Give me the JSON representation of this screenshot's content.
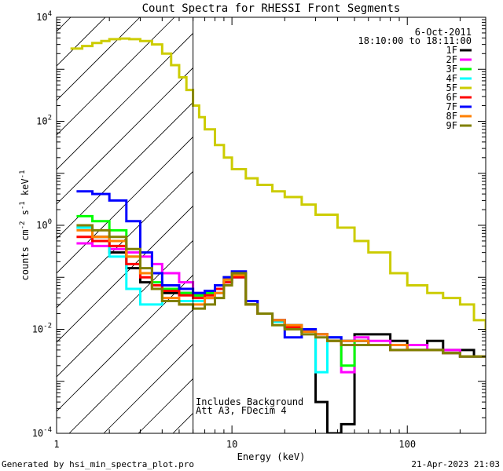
{
  "chart_data": {
    "type": "line",
    "title": "Count Spectra for RHESSI Front Segments",
    "xlabel": "Energy (keV)",
    "ylabel": "counts cm-2 s-1 keV-1",
    "ylabel_parts": {
      "base": "counts cm",
      "e1": "-2",
      "mid1": " s",
      "e2": "-1",
      "mid2": " keV",
      "e3": "-1"
    },
    "xscale": "log",
    "yscale": "log",
    "xlim": [
      1,
      280
    ],
    "ylim": [
      0.0001,
      10000
    ],
    "x_ticks": [
      {
        "value": 1,
        "label": "1"
      },
      {
        "value": 10,
        "label": "10"
      },
      {
        "value": 100,
        "label": "100"
      }
    ],
    "y_ticks": [
      {
        "value": 0.0001,
        "base": "10",
        "exp": "-4"
      },
      {
        "value": 0.01,
        "base": "10",
        "exp": "-2"
      },
      {
        "value": 1,
        "base": "10",
        "exp": "0"
      },
      {
        "value": 100,
        "base": "10",
        "exp": "2"
      },
      {
        "value": 10000,
        "base": "10",
        "exp": "4"
      }
    ],
    "legend_position": "top-right",
    "date": "6-Oct-2011",
    "time_range": "18:10:00 to 18:11:00",
    "hatched_region_x": [
      1,
      6
    ],
    "vertical_line_x": 6,
    "annotation_lines": [
      "Includes Background",
      "Att A3, FDecim 4"
    ],
    "footer_left": "Generated by hsi_min_spectra_plot.pro",
    "footer_right": "21-Apr-2023 21:03",
    "series": [
      {
        "name": "1F",
        "color": "#000000",
        "x": [
          1.3,
          1.6,
          2.0,
          2.5,
          3.0,
          3.5,
          4.0,
          5.0,
          6.0,
          7.0,
          8.0,
          9.0,
          10.0,
          12.0,
          14.0,
          17.0,
          20.0,
          25.0,
          30.0,
          35.0,
          42.0,
          50.0,
          60.0,
          80.0,
          100.0,
          130.0,
          160.0,
          200.0,
          240.0,
          280.0
        ],
        "y": [
          0.9,
          0.6,
          0.3,
          0.15,
          0.08,
          0.06,
          0.05,
          0.05,
          0.045,
          0.05,
          0.06,
          0.1,
          0.12,
          0.03,
          0.02,
          0.015,
          0.012,
          0.01,
          0.0004,
          0.0001,
          0.00015,
          0.008,
          0.008,
          0.006,
          0.005,
          0.006,
          0.004,
          0.004,
          0.003,
          0.003
        ]
      },
      {
        "name": "2F",
        "color": "#ff00ff",
        "x": [
          1.3,
          1.6,
          2.0,
          2.5,
          3.0,
          3.5,
          4.0,
          5.0,
          6.0,
          7.0,
          8.0,
          9.0,
          10.0,
          12.0,
          14.0,
          17.0,
          20.0,
          25.0,
          30.0,
          35.0,
          42.0,
          50.0,
          60.0,
          80.0,
          100.0,
          130.0,
          160.0,
          200.0,
          240.0,
          280.0
        ],
        "y": [
          0.45,
          0.4,
          0.35,
          0.3,
          0.25,
          0.18,
          0.12,
          0.08,
          0.05,
          0.04,
          0.05,
          0.08,
          0.1,
          0.035,
          0.02,
          0.015,
          0.012,
          0.009,
          0.008,
          0.007,
          0.0015,
          0.007,
          0.006,
          0.005,
          0.005,
          0.004,
          0.004,
          0.003,
          0.003,
          0.003
        ]
      },
      {
        "name": "3F",
        "color": "#00ff00",
        "x": [
          1.3,
          1.6,
          2.0,
          2.5,
          3.0,
          3.5,
          4.0,
          5.0,
          6.0,
          7.0,
          8.0,
          9.0,
          10.0,
          12.0,
          14.0,
          17.0,
          20.0,
          25.0,
          30.0,
          35.0,
          42.0,
          50.0,
          60.0,
          80.0,
          100.0,
          130.0,
          160.0,
          200.0,
          240.0,
          280.0
        ],
        "y": [
          1.5,
          1.2,
          0.8,
          0.25,
          0.12,
          0.08,
          0.06,
          0.05,
          0.045,
          0.05,
          0.06,
          0.09,
          0.11,
          0.03,
          0.02,
          0.014,
          0.011,
          0.009,
          0.008,
          0.006,
          0.002,
          0.006,
          0.005,
          0.005,
          0.004,
          0.004,
          0.0035,
          0.003,
          0.003,
          0.003
        ]
      },
      {
        "name": "4F",
        "color": "#00ffff",
        "x": [
          1.3,
          1.6,
          2.0,
          2.5,
          3.0,
          3.5,
          4.0,
          5.0,
          6.0,
          7.0,
          8.0,
          9.0,
          10.0,
          12.0,
          14.0,
          17.0,
          20.0,
          25.0,
          30.0,
          35.0,
          42.0,
          50.0,
          60.0,
          80.0,
          100.0,
          130.0,
          160.0,
          200.0,
          240.0,
          280.0
        ],
        "y": [
          0.9,
          0.5,
          0.25,
          0.06,
          0.03,
          0.03,
          0.035,
          0.035,
          0.035,
          0.04,
          0.05,
          0.08,
          0.1,
          0.03,
          0.02,
          0.014,
          0.012,
          0.009,
          0.0015,
          0.007,
          0.006,
          0.006,
          0.005,
          0.004,
          0.004,
          0.004,
          0.0035,
          0.003,
          0.003,
          0.003
        ]
      },
      {
        "name": "5F",
        "color": "#cccc00",
        "x": [
          1.2,
          1.4,
          1.6,
          1.8,
          2.0,
          2.3,
          2.6,
          3.0,
          3.5,
          4.0,
          4.5,
          5.0,
          5.5,
          6.0,
          6.5,
          7.0,
          8.0,
          9.0,
          10.0,
          12.0,
          14.0,
          17.0,
          20.0,
          25.0,
          30.0,
          40.0,
          50.0,
          60.0,
          80.0,
          100.0,
          130.0,
          160.0,
          200.0,
          240.0,
          280.0
        ],
        "y": [
          2500,
          2800,
          3200,
          3500,
          3800,
          3900,
          3800,
          3500,
          3000,
          2000,
          1200,
          700,
          400,
          200,
          120,
          70,
          35,
          20,
          12,
          8,
          6,
          4.5,
          3.5,
          2.5,
          1.6,
          0.9,
          0.5,
          0.3,
          0.12,
          0.07,
          0.05,
          0.04,
          0.03,
          0.015,
          0.01
        ]
      },
      {
        "name": "6F",
        "color": "#ff0000",
        "x": [
          1.3,
          1.6,
          2.0,
          2.5,
          3.0,
          3.5,
          4.0,
          5.0,
          6.0,
          7.0,
          8.0,
          9.0,
          10.0,
          12.0,
          14.0,
          17.0,
          20.0,
          25.0,
          30.0,
          35.0,
          42.0,
          50.0,
          60.0,
          80.0,
          100.0,
          130.0,
          160.0,
          200.0,
          240.0,
          280.0
        ],
        "y": [
          0.6,
          0.5,
          0.4,
          0.18,
          0.1,
          0.07,
          0.055,
          0.045,
          0.04,
          0.045,
          0.06,
          0.08,
          0.1,
          0.03,
          0.02,
          0.015,
          0.011,
          0.009,
          0.008,
          0.006,
          0.005,
          0.005,
          0.005,
          0.004,
          0.004,
          0.004,
          0.0035,
          0.003,
          0.003,
          0.003
        ]
      },
      {
        "name": "7F",
        "color": "#0000ff",
        "x": [
          1.3,
          1.6,
          2.0,
          2.5,
          3.0,
          3.5,
          4.0,
          5.0,
          6.0,
          7.0,
          8.0,
          9.0,
          10.0,
          12.0,
          14.0,
          17.0,
          20.0,
          25.0,
          30.0,
          35.0,
          42.0,
          50.0,
          60.0,
          80.0,
          100.0,
          130.0,
          160.0,
          200.0,
          240.0,
          280.0
        ],
        "y": [
          4.5,
          4.0,
          3.0,
          1.2,
          0.3,
          0.12,
          0.07,
          0.06,
          0.05,
          0.055,
          0.07,
          0.1,
          0.13,
          0.035,
          0.02,
          0.015,
          0.007,
          0.01,
          0.008,
          0.007,
          0.006,
          0.006,
          0.005,
          0.005,
          0.004,
          0.004,
          0.0035,
          0.003,
          0.003,
          0.003
        ]
      },
      {
        "name": "8F",
        "color": "#ff8000",
        "x": [
          1.3,
          1.6,
          2.0,
          2.5,
          3.0,
          3.5,
          4.0,
          5.0,
          6.0,
          7.0,
          8.0,
          9.0,
          10.0,
          12.0,
          14.0,
          17.0,
          20.0,
          25.0,
          30.0,
          35.0,
          42.0,
          50.0,
          60.0,
          80.0,
          100.0,
          130.0,
          160.0,
          200.0,
          240.0,
          280.0
        ],
        "y": [
          0.8,
          0.6,
          0.5,
          0.25,
          0.12,
          0.06,
          0.04,
          0.03,
          0.03,
          0.04,
          0.05,
          0.09,
          0.11,
          0.03,
          0.02,
          0.015,
          0.012,
          0.009,
          0.008,
          0.006,
          0.006,
          0.006,
          0.005,
          0.005,
          0.004,
          0.004,
          0.0035,
          0.003,
          0.003,
          0.003
        ]
      },
      {
        "name": "9F",
        "color": "#808000",
        "x": [
          1.3,
          1.6,
          2.0,
          2.5,
          3.0,
          3.5,
          4.0,
          5.0,
          6.0,
          7.0,
          8.0,
          9.0,
          10.0,
          12.0,
          14.0,
          17.0,
          20.0,
          25.0,
          30.0,
          35.0,
          42.0,
          50.0,
          60.0,
          80.0,
          100.0,
          130.0,
          160.0,
          200.0,
          240.0,
          280.0
        ],
        "y": [
          1.0,
          0.8,
          0.6,
          0.35,
          0.15,
          0.06,
          0.035,
          0.03,
          0.025,
          0.03,
          0.04,
          0.07,
          0.12,
          0.03,
          0.02,
          0.012,
          0.01,
          0.008,
          0.007,
          0.006,
          0.005,
          0.005,
          0.005,
          0.004,
          0.004,
          0.004,
          0.0035,
          0.003,
          0.003,
          0.003
        ]
      }
    ]
  }
}
